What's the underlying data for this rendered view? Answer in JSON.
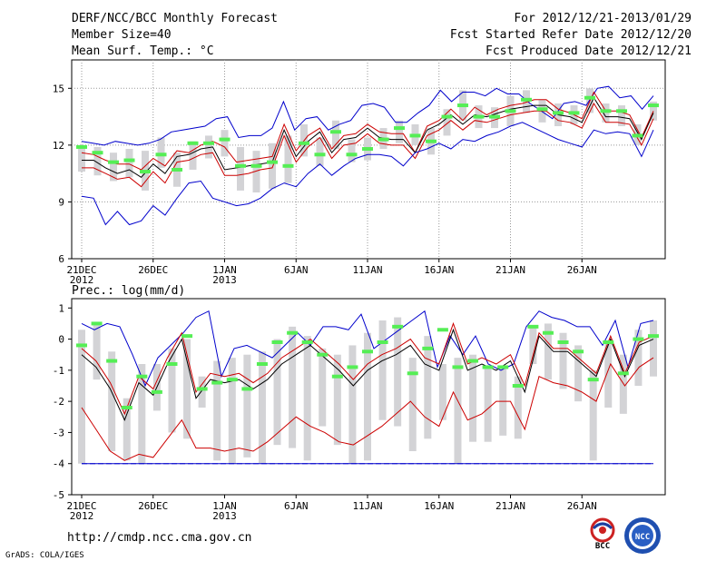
{
  "header": {
    "title": "DERF/NCC/BCC Monthly Forecast",
    "member_size": "Member Size=40",
    "variable_label": "Mean Surf. Temp.: °C",
    "forecast_period": "For 2012/12/21-2013/01/29",
    "started_date": "Fcst Started Refer Date 2012/12/20",
    "produced_date": "Fcst Produced Date 2012/12/21"
  },
  "footer": {
    "url": "http://cmdp.ncc.cma.gov.cn",
    "credit": "GrADS: COLA/IGES",
    "logo_bcc": "BCC",
    "logo_ncc": "NCC"
  },
  "colors": {
    "mean": "#000000",
    "spread": "#cc0000",
    "extreme": "#0000cc",
    "obs": "#55ee55",
    "box": "#d3d3d6",
    "grid": "#999999"
  },
  "chart_data": [
    {
      "type": "line",
      "title": "Mean Surf. Temp.: °C",
      "ylabel": "°C",
      "ylim": [
        6,
        16.5
      ],
      "yticks": [
        6,
        9,
        12,
        15
      ],
      "ytick_labels": [
        "6",
        "9",
        "12",
        "15"
      ],
      "x_days": 40,
      "xtick_days": [
        0,
        5,
        10,
        15,
        20,
        25,
        30,
        35
      ],
      "xtick_labels": [
        "21DEC",
        "26DEC",
        "1JAN",
        "6JAN",
        "11JAN",
        "16JAN",
        "21JAN",
        "26JAN"
      ],
      "xtick_sublabels": [
        "2012",
        "",
        "2013",
        "",
        "",
        "",
        "",
        ""
      ],
      "grid": true,
      "series": [
        {
          "name": "ensemble max",
          "role": "extreme",
          "values": [
            12.2,
            12.1,
            12.0,
            12.2,
            12.1,
            12.0,
            12.1,
            12.3,
            12.7,
            12.8,
            12.9,
            13.0,
            13.4,
            13.5,
            12.4,
            12.5,
            12.5,
            12.9,
            14.3,
            12.8,
            13.4,
            13.5,
            12.8,
            13.1,
            13.3,
            14.1,
            14.2,
            14.0,
            13.2,
            13.2,
            13.7,
            14.1,
            14.9,
            14.3,
            14.8,
            14.8,
            14.6,
            15.0,
            14.7,
            14.7,
            14.2,
            13.8,
            13.4,
            14.2,
            14.3,
            14.1,
            15.0,
            15.1,
            14.5,
            14.6,
            13.9,
            14.6
          ]
        },
        {
          "name": "upper spread",
          "role": "spread",
          "values": [
            11.6,
            11.5,
            11.2,
            11.0,
            11.0,
            10.7,
            11.3,
            10.9,
            11.7,
            11.6,
            12.0,
            12.2,
            11.9,
            11.1,
            11.2,
            11.3,
            11.4,
            13.1,
            11.7,
            12.5,
            12.9,
            11.8,
            12.5,
            12.6,
            13.1,
            12.7,
            12.6,
            12.6,
            11.6,
            13.0,
            13.3,
            13.9,
            13.3,
            14.0,
            13.6,
            13.9,
            14.1,
            14.2,
            14.4,
            14.4,
            13.9,
            13.7,
            13.4,
            14.8,
            13.8,
            13.8,
            13.6,
            12.4,
            13.8
          ]
        },
        {
          "name": "ensemble mean",
          "role": "mean",
          "values": [
            11.2,
            11.2,
            10.8,
            10.5,
            10.7,
            10.3,
            11.0,
            10.5,
            11.4,
            11.5,
            11.8,
            11.9,
            10.7,
            10.8,
            10.9,
            11.0,
            11.1,
            12.8,
            11.4,
            12.2,
            12.7,
            11.6,
            12.3,
            12.4,
            12.9,
            12.4,
            12.3,
            12.3,
            11.6,
            12.8,
            13.1,
            13.6,
            13.1,
            13.6,
            13.5,
            13.7,
            13.9,
            14.0,
            14.1,
            14.1,
            13.6,
            13.5,
            13.2,
            14.5,
            13.5,
            13.5,
            13.4,
            12.3,
            13.7
          ]
        },
        {
          "name": "lower spread",
          "role": "spread",
          "values": [
            10.8,
            10.8,
            10.5,
            10.2,
            10.3,
            9.8,
            10.6,
            10.0,
            11.1,
            11.2,
            11.5,
            11.6,
            10.4,
            10.4,
            10.5,
            10.7,
            10.8,
            12.5,
            11.1,
            11.9,
            12.4,
            11.3,
            12.0,
            12.1,
            12.6,
            12.1,
            12.0,
            12.0,
            11.3,
            12.5,
            12.8,
            13.3,
            12.8,
            13.3,
            13.2,
            13.4,
            13.6,
            13.7,
            13.8,
            13.8,
            13.3,
            13.2,
            12.9,
            14.2,
            13.2,
            13.2,
            13.1,
            12.0,
            13.4
          ]
        },
        {
          "name": "ensemble min",
          "role": "extreme",
          "values": [
            9.3,
            9.2,
            7.8,
            8.5,
            7.8,
            8.0,
            8.8,
            8.3,
            9.2,
            10.0,
            10.1,
            9.2,
            9.0,
            8.8,
            8.9,
            9.2,
            9.7,
            10.0,
            9.8,
            10.5,
            11.0,
            10.4,
            10.9,
            11.3,
            11.5,
            11.5,
            11.4,
            10.9,
            11.6,
            11.8,
            12.1,
            11.8,
            12.3,
            12.2,
            12.5,
            12.7,
            13.0,
            13.2,
            12.9,
            12.6,
            12.3,
            12.1,
            11.9,
            12.8,
            12.6,
            12.7,
            12.6,
            11.4,
            12.8
          ]
        }
      ],
      "obs_markers": [
        11.9,
        11.6,
        11.1,
        11.2,
        10.6,
        11.5,
        10.7,
        12.1,
        12.1,
        12.3,
        10.9,
        10.9,
        11.1,
        10.9,
        12.1,
        11.5,
        12.7,
        11.5,
        11.8,
        12.3,
        12.9,
        12.5,
        12.2,
        13.5,
        14.1,
        13.5,
        13.5,
        13.8,
        14.4,
        13.9,
        13.7,
        13.7,
        14.5,
        13.8,
        13.8,
        12.5,
        14.1
      ],
      "boxes": [
        [
          10.6,
          12.0
        ],
        [
          10.4,
          11.9
        ],
        [
          10.1,
          11.6
        ],
        [
          10.3,
          11.8
        ],
        [
          9.6,
          11.7
        ],
        [
          10.8,
          12.4
        ],
        [
          9.8,
          11.6
        ],
        [
          10.7,
          12.2
        ],
        [
          11.3,
          12.5
        ],
        [
          11.4,
          12.8
        ],
        [
          9.6,
          11.9
        ],
        [
          9.5,
          11.7
        ],
        [
          9.7,
          12.1
        ],
        [
          10.0,
          12.5
        ],
        [
          11.4,
          13.1
        ],
        [
          10.9,
          12.4
        ],
        [
          11.8,
          13.3
        ],
        [
          11.1,
          12.3
        ],
        [
          11.2,
          12.4
        ],
        [
          11.8,
          12.9
        ],
        [
          12.1,
          13.3
        ],
        [
          12.0,
          13.1
        ],
        [
          11.5,
          12.9
        ],
        [
          12.5,
          13.9
        ],
        [
          13.3,
          14.9
        ],
        [
          12.9,
          14.1
        ],
        [
          12.9,
          14.0
        ],
        [
          13.0,
          14.6
        ],
        [
          13.7,
          14.9
        ],
        [
          13.2,
          14.4
        ],
        [
          13.0,
          14.2
        ],
        [
          13.1,
          14.1
        ],
        [
          13.7,
          15.0
        ],
        [
          13.2,
          14.2
        ],
        [
          13.0,
          14.1
        ],
        [
          12.0,
          13.1
        ],
        [
          13.3,
          14.3
        ]
      ]
    },
    {
      "type": "line",
      "title": "Prec.: log(mm/d)",
      "ylabel": "log(mm/d)",
      "ylim": [
        -5,
        1.3
      ],
      "yticks": [
        -5,
        -4,
        -3,
        -2,
        -1,
        0,
        1
      ],
      "ytick_labels": [
        "-5",
        "-4",
        "-3",
        "-2",
        "-1",
        "0",
        "1"
      ],
      "x_days": 40,
      "xtick_days": [
        0,
        5,
        10,
        15,
        20,
        25,
        30,
        35
      ],
      "xtick_labels": [
        "21DEC",
        "26DEC",
        "1JAN",
        "6JAN",
        "11JAN",
        "16JAN",
        "21JAN",
        "26JAN"
      ],
      "xtick_sublabels": [
        "2012",
        "",
        "2013",
        "",
        "",
        "",
        "",
        ""
      ],
      "grid": false,
      "baseline": -4,
      "series": [
        {
          "name": "ensemble max",
          "role": "extreme",
          "values": [
            0.5,
            0.3,
            0.5,
            0.4,
            -0.5,
            -1.5,
            -0.6,
            -0.2,
            0.2,
            0.7,
            0.9,
            -1.2,
            -0.3,
            -0.2,
            -0.4,
            -0.6,
            -0.2,
            0.2,
            -0.2,
            0.4,
            0.4,
            0.3,
            0.8,
            -0.3,
            0.0,
            0.3,
            0.6,
            0.9,
            -0.9,
            0.1,
            -0.5,
            0.1,
            -0.8,
            -1.0,
            -0.8,
            0.4,
            0.9,
            0.7,
            0.6,
            0.4,
            0.4,
            -0.2,
            0.6,
            -0.9,
            0.5,
            0.6
          ]
        },
        {
          "name": "ensemble mean",
          "role": "mean",
          "values": [
            -0.5,
            -0.9,
            -1.6,
            -2.6,
            -1.4,
            -1.8,
            -0.8,
            0.0,
            -1.9,
            -1.3,
            -1.4,
            -1.3,
            -1.6,
            -1.3,
            -0.8,
            -0.5,
            -0.2,
            -0.6,
            -1.0,
            -1.5,
            -1.0,
            -0.7,
            -0.5,
            -0.2,
            -0.8,
            -1.0,
            0.3,
            -1.0,
            -0.8,
            -1.0,
            -0.7,
            -1.7,
            0.1,
            -0.4,
            -0.4,
            -0.8,
            -1.2,
            0.0,
            -1.2,
            -0.2,
            0.0
          ]
        },
        {
          "name": "upper spread",
          "role": "spread",
          "values": [
            -0.3,
            -0.7,
            -1.4,
            -2.4,
            -1.2,
            -1.6,
            -0.6,
            0.2,
            -1.7,
            -1.1,
            -1.2,
            -1.1,
            -1.4,
            -1.1,
            -0.6,
            -0.3,
            0.0,
            -0.4,
            -0.8,
            -1.3,
            -0.8,
            -0.5,
            -0.3,
            0.0,
            -0.6,
            -0.8,
            0.5,
            -0.8,
            -0.6,
            -0.8,
            -0.5,
            -1.5,
            0.2,
            -0.3,
            -0.3,
            -0.7,
            -1.1,
            0.1,
            -1.1,
            -0.1,
            0.1
          ]
        },
        {
          "name": "lower spread",
          "role": "spread",
          "values": [
            -2.2,
            -2.9,
            -3.6,
            -3.9,
            -3.7,
            -3.8,
            -3.2,
            -2.6,
            -3.5,
            -3.5,
            -3.6,
            -3.5,
            -3.6,
            -3.3,
            -2.9,
            -2.5,
            -2.8,
            -3.0,
            -3.3,
            -3.4,
            -3.1,
            -2.8,
            -2.4,
            -2.0,
            -2.5,
            -2.8,
            -1.7,
            -2.6,
            -2.4,
            -2.0,
            -2.0,
            -2.9,
            -1.2,
            -1.4,
            -1.5,
            -1.7,
            -2.0,
            -0.8,
            -1.5,
            -0.9,
            -0.6
          ]
        },
        {
          "name": "ensemble min",
          "role": "extreme",
          "values": [
            -4.0,
            -4.0,
            -4.0,
            -4.0,
            -4.0,
            -4.0,
            -4.0,
            -4.0,
            -4.0,
            -4.0,
            -4.0,
            -4.0,
            -4.0,
            -4.0,
            -4.0,
            -4.0,
            -4.0,
            -4.0,
            -4.0,
            -4.0,
            -4.0,
            -4.0,
            -4.0,
            -4.0,
            -4.0,
            -4.0,
            -4.0,
            -4.0,
            -4.0,
            -4.0,
            -4.0,
            -4.0,
            -4.0,
            -4.0,
            -4.0,
            -4.0,
            -4.0,
            -4.0,
            -4.0,
            -4.0,
            -4.0
          ]
        }
      ],
      "obs_markers": [
        -0.2,
        0.5,
        -0.7,
        -2.2,
        -1.2,
        -1.7,
        -0.8,
        0.1,
        -1.6,
        -1.4,
        -1.3,
        -1.6,
        -0.8,
        -0.1,
        0.2,
        -0.1,
        -0.5,
        -1.2,
        -0.9,
        -0.4,
        -0.1,
        0.4,
        -1.1,
        -0.3,
        0.3,
        -0.9,
        -0.7,
        -0.9,
        -0.9,
        -1.5,
        0.4,
        0.2,
        -0.1,
        -0.4,
        -1.3,
        -0.1,
        -1.1,
        0.0,
        0.1
      ],
      "boxes": [
        [
          -4.0,
          0.3
        ],
        [
          -1.3,
          0.5
        ],
        [
          -3.6,
          -0.4
        ],
        [
          -3.9,
          -1.9
        ],
        [
          -4.0,
          -0.8
        ],
        [
          -2.3,
          -0.8
        ],
        [
          -3.0,
          -0.3
        ],
        [
          -3.2,
          0.0
        ],
        [
          -2.2,
          -1.2
        ],
        [
          -3.9,
          -0.7
        ],
        [
          -4.0,
          -0.6
        ],
        [
          -3.8,
          -0.5
        ],
        [
          -4.0,
          -0.4
        ],
        [
          -3.4,
          0.0
        ],
        [
          -3.5,
          0.4
        ],
        [
          -3.9,
          0.1
        ],
        [
          -2.8,
          -0.3
        ],
        [
          -3.4,
          -0.5
        ],
        [
          -4.0,
          -0.2
        ],
        [
          -3.9,
          0.2
        ],
        [
          -2.6,
          0.6
        ],
        [
          -2.8,
          0.7
        ],
        [
          -3.6,
          -0.6
        ],
        [
          -3.2,
          0.1
        ],
        [
          -2.6,
          -0.8
        ],
        [
          -4.0,
          -0.6
        ],
        [
          -3.3,
          -0.5
        ],
        [
          -3.3,
          -0.9
        ],
        [
          -3.1,
          -0.9
        ],
        [
          -3.2,
          -1.2
        ],
        [
          -0.8,
          0.4
        ],
        [
          -1.3,
          0.5
        ],
        [
          -1.6,
          0.2
        ],
        [
          -2.0,
          -0.2
        ],
        [
          -3.9,
          -1.0
        ],
        [
          -2.2,
          -0.1
        ],
        [
          -2.4,
          -0.5
        ],
        [
          -1.5,
          0.3
        ],
        [
          -1.2,
          0.6
        ]
      ]
    }
  ]
}
